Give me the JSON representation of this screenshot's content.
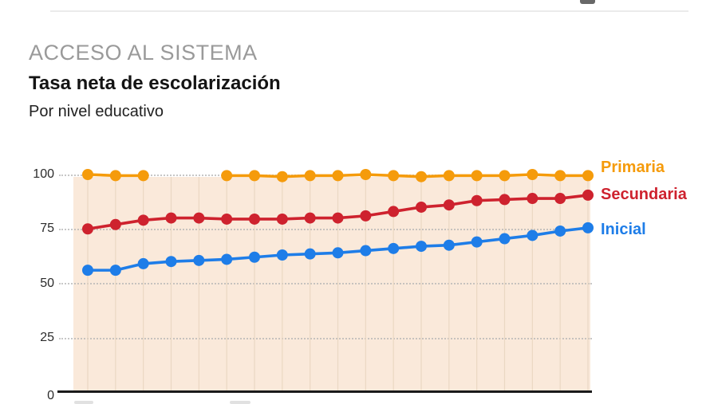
{
  "page": {
    "section_label": "ACCESO AL SISTEMA",
    "title": "Tasa neta de escolarización",
    "subtitle": "Por nivel educativo"
  },
  "chart_data": {
    "type": "line",
    "title": "Tasa neta de escolarización",
    "subtitle": "Por nivel educativo",
    "ylabel": "",
    "xlabel": "",
    "ylim": [
      0,
      100
    ],
    "yticks": [
      0,
      25,
      50,
      75,
      100
    ],
    "ytick_labels": [
      "0",
      "25",
      "50",
      "75",
      "100"
    ],
    "x_axis_labels_visible": false,
    "n_points": 19,
    "grid": {
      "horizontal": "dotted",
      "vertical": "solid-light"
    },
    "plot_background_color": "#FAE9DA",
    "vertical_grid_color": "#EAD8C3",
    "legend_position": "right-of-lines",
    "series": [
      {
        "name": "Primaria",
        "color": "#F59B0B",
        "values": [
          100,
          99.5,
          99.5,
          null,
          null,
          99.5,
          99.5,
          99,
          99.5,
          99.5,
          100,
          99.5,
          99,
          99.5,
          99.5,
          99.5,
          100,
          99.5,
          99.5
        ]
      },
      {
        "name": "Secundaria",
        "color": "#CE222E",
        "values": [
          75,
          77,
          79,
          80,
          80,
          79.5,
          79.5,
          79.5,
          80,
          80,
          81,
          83,
          85,
          86,
          88,
          88.5,
          89,
          89,
          90.5
        ]
      },
      {
        "name": "Inicial",
        "color": "#1E7DE8",
        "values": [
          56,
          56,
          59,
          60,
          60.5,
          61,
          62,
          63,
          63.5,
          64,
          65,
          66,
          67,
          67.5,
          69,
          70.5,
          72,
          74,
          75.5
        ]
      }
    ]
  }
}
